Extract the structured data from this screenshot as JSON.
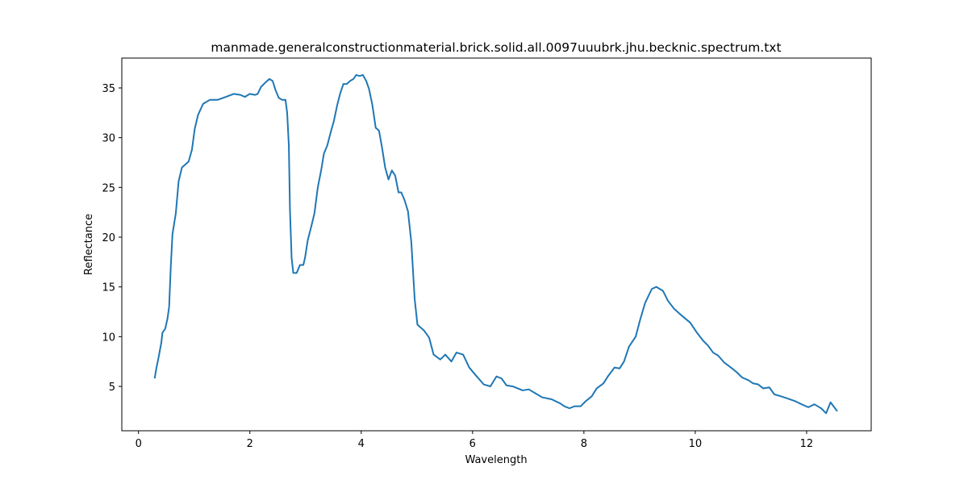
{
  "chart_data": {
    "type": "line",
    "title": "manmade.generalconstructionmaterial.brick.solid.all.0097uuubrk.jhu.becknic.spectrum.txt",
    "xlabel": "Wavelength",
    "ylabel": "Reflectance",
    "color": "#1f77b4",
    "xlim": [
      -0.3,
      13.16
    ],
    "ylim": [
      0.54,
      38.0
    ],
    "xticks": [
      0,
      2,
      4,
      6,
      8,
      10,
      12
    ],
    "yticks": [
      5,
      10,
      15,
      20,
      25,
      30,
      35
    ],
    "x": [
      0.29,
      0.32,
      0.36,
      0.41,
      0.43,
      0.48,
      0.52,
      0.55,
      0.58,
      0.61,
      0.67,
      0.72,
      0.78,
      0.84,
      0.9,
      0.96,
      1.01,
      1.07,
      1.16,
      1.28,
      1.42,
      1.57,
      1.71,
      1.83,
      1.91,
      2.0,
      2.09,
      2.14,
      2.2,
      2.29,
      2.35,
      2.41,
      2.46,
      2.52,
      2.58,
      2.64,
      2.67,
      2.7,
      2.72,
      2.75,
      2.78,
      2.84,
      2.9,
      2.96,
      2.99,
      3.04,
      3.1,
      3.16,
      3.22,
      3.28,
      3.33,
      3.39,
      3.45,
      3.51,
      3.57,
      3.62,
      3.68,
      3.74,
      3.8,
      3.86,
      3.91,
      3.97,
      4.03,
      4.09,
      4.14,
      4.2,
      4.26,
      4.32,
      4.38,
      4.43,
      4.49,
      4.55,
      4.61,
      4.67,
      4.72,
      4.78,
      4.84,
      4.9,
      4.96,
      5.01,
      5.13,
      5.22,
      5.3,
      5.42,
      5.51,
      5.62,
      5.71,
      5.83,
      5.94,
      6.06,
      6.2,
      6.32,
      6.43,
      6.52,
      6.61,
      6.72,
      6.9,
      7.01,
      7.13,
      7.25,
      7.42,
      7.57,
      7.65,
      7.74,
      7.83,
      7.94,
      8.03,
      8.14,
      8.23,
      8.35,
      8.43,
      8.55,
      8.64,
      8.72,
      8.81,
      8.93,
      9.01,
      9.1,
      9.22,
      9.3,
      9.42,
      9.51,
      9.62,
      9.74,
      9.91,
      10.03,
      10.14,
      10.23,
      10.32,
      10.41,
      10.52,
      10.64,
      10.75,
      10.84,
      10.96,
      11.04,
      11.13,
      11.22,
      11.33,
      11.42,
      11.54,
      11.65,
      11.8,
      11.91,
      12.03,
      12.14,
      12.26,
      12.35,
      12.43,
      12.55
    ],
    "values": [
      5.8,
      6.8,
      7.9,
      9.4,
      10.4,
      10.8,
      11.8,
      13.0,
      17.1,
      20.3,
      22.4,
      25.6,
      27.0,
      27.3,
      27.6,
      28.8,
      30.9,
      32.3,
      33.4,
      33.8,
      33.8,
      34.1,
      34.4,
      34.3,
      34.1,
      34.4,
      34.3,
      34.4,
      35.1,
      35.6,
      35.9,
      35.7,
      34.8,
      34.0,
      33.8,
      33.8,
      32.5,
      29.2,
      22.8,
      17.9,
      16.4,
      16.4,
      17.2,
      17.2,
      17.9,
      19.7,
      21.0,
      22.4,
      25.0,
      26.7,
      28.4,
      29.2,
      30.5,
      31.7,
      33.3,
      34.4,
      35.4,
      35.4,
      35.7,
      35.9,
      36.3,
      36.2,
      36.3,
      35.7,
      34.9,
      33.3,
      31.0,
      30.7,
      28.8,
      27.0,
      25.8,
      26.7,
      26.2,
      24.5,
      24.5,
      23.7,
      22.6,
      19.5,
      13.8,
      11.2,
      10.6,
      9.9,
      8.2,
      7.7,
      8.2,
      7.5,
      8.4,
      8.2,
      6.9,
      6.1,
      5.2,
      5.0,
      6.0,
      5.8,
      5.1,
      5.0,
      4.6,
      4.7,
      4.3,
      3.9,
      3.7,
      3.3,
      3.0,
      2.8,
      3.0,
      3.0,
      3.5,
      4.0,
      4.8,
      5.3,
      6.0,
      6.9,
      6.8,
      7.5,
      9.0,
      10.0,
      11.7,
      13.4,
      14.8,
      15.0,
      14.6,
      13.6,
      12.8,
      12.2,
      11.4,
      10.4,
      9.6,
      9.1,
      8.4,
      8.1,
      7.4,
      6.9,
      6.4,
      5.9,
      5.6,
      5.3,
      5.2,
      4.8,
      4.9,
      4.2,
      4.0,
      3.8,
      3.5,
      3.2,
      2.9,
      3.2,
      2.8,
      2.3,
      3.4,
      2.5
    ]
  }
}
